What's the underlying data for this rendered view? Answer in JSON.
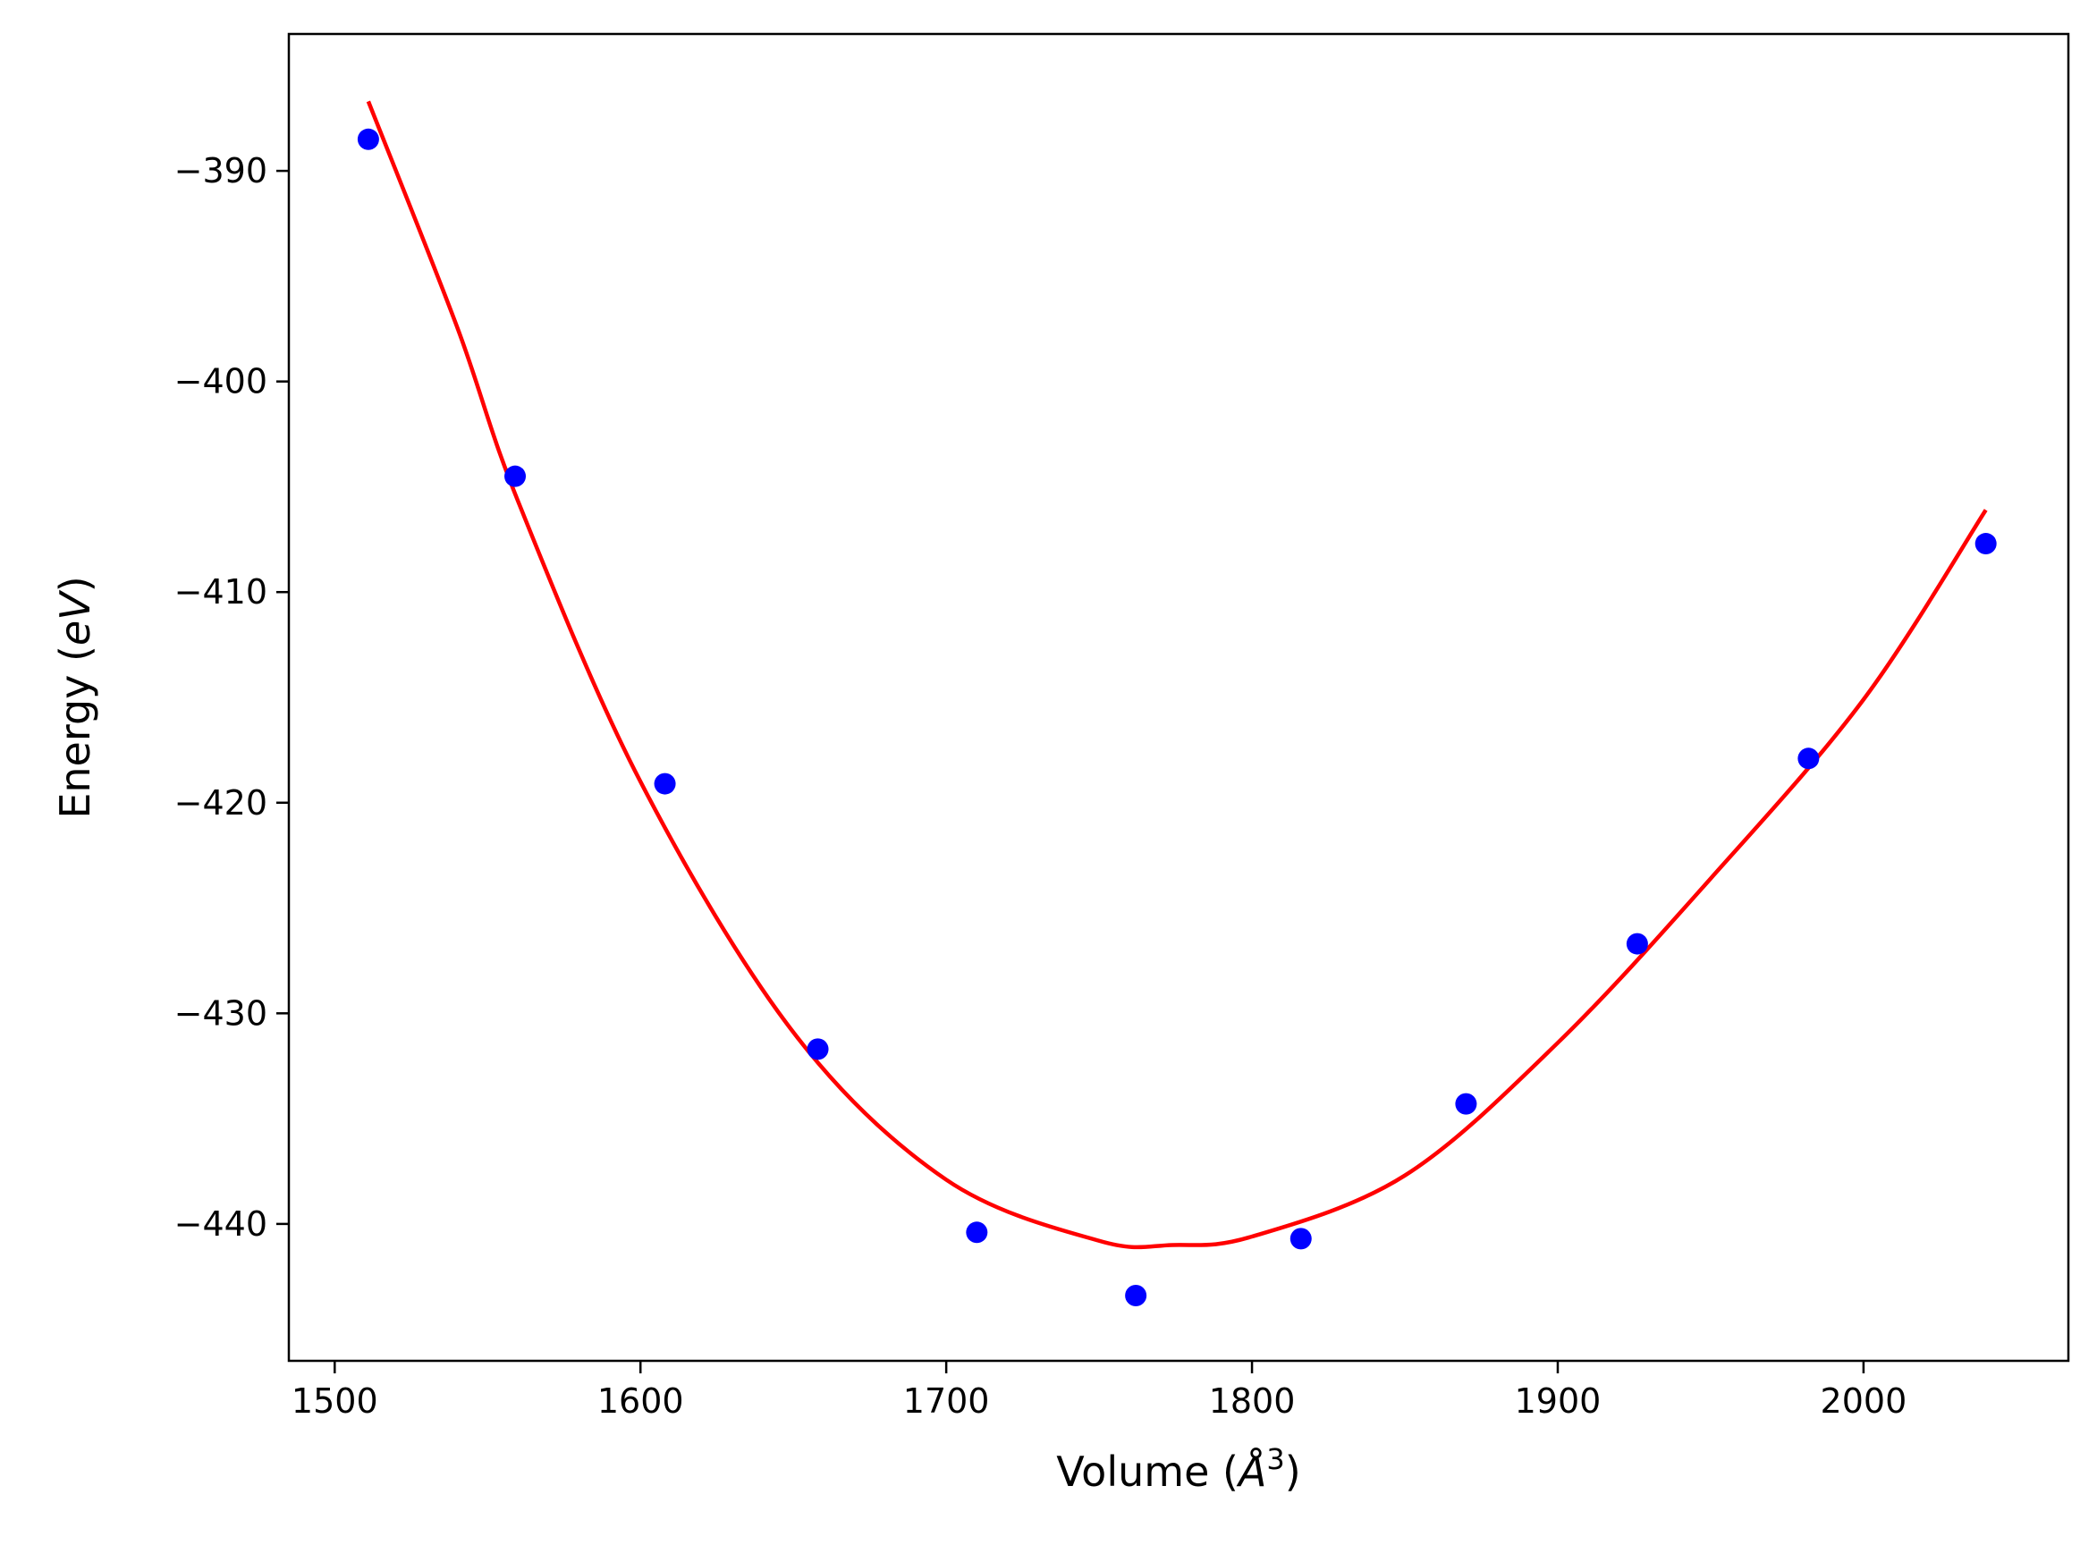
{
  "chart_data": {
    "type": "scatter",
    "xlabel": {
      "prefix": "Volume (",
      "symbol": "Å",
      "sup": "3",
      "suffix": ")"
    },
    "ylabel": {
      "prefix": "Energy (",
      "symbol": "eV",
      "suffix": ")"
    },
    "xlim": [
      1485,
      2067
    ],
    "ylim": [
      -446.5,
      -383.5
    ],
    "xticks": [
      1500,
      1600,
      1700,
      1800,
      1900,
      2000
    ],
    "yticks": [
      -390,
      -400,
      -410,
      -420,
      -430,
      -440
    ],
    "ytick_labels": [
      "−390",
      "−400",
      "−410",
      "−420",
      "−430",
      "−440"
    ],
    "grid": false,
    "legend": "none",
    "series": [
      {
        "kind": "scatter",
        "color": "#0000ff",
        "points": [
          {
            "x": 1511,
            "y": -388.5
          },
          {
            "x": 1559,
            "y": -404.5
          },
          {
            "x": 1608,
            "y": -419.1
          },
          {
            "x": 1658,
            "y": -431.7
          },
          {
            "x": 1710,
            "y": -440.4
          },
          {
            "x": 1762,
            "y": -443.4
          },
          {
            "x": 1816,
            "y": -440.7
          },
          {
            "x": 1870,
            "y": -434.3
          },
          {
            "x": 1926,
            "y": -426.7
          },
          {
            "x": 1982,
            "y": -417.9
          },
          {
            "x": 2040,
            "y": -407.7
          }
        ]
      },
      {
        "kind": "fit-curve",
        "color": "#ff0000",
        "points": [
          {
            "x": 1511,
            "y": -386.7
          },
          {
            "x": 1540,
            "y": -397.4
          },
          {
            "x": 1560,
            "y": -405.7
          },
          {
            "x": 1600,
            "y": -419.0
          },
          {
            "x": 1650,
            "y": -430.9
          },
          {
            "x": 1700,
            "y": -437.9
          },
          {
            "x": 1750,
            "y": -440.8
          },
          {
            "x": 1774,
            "y": -441.0
          },
          {
            "x": 1800,
            "y": -440.6
          },
          {
            "x": 1850,
            "y": -437.7
          },
          {
            "x": 1900,
            "y": -431.4
          },
          {
            "x": 1950,
            "y": -423.6
          },
          {
            "x": 2000,
            "y": -415.1
          },
          {
            "x": 2040,
            "y": -406.1
          }
        ]
      }
    ]
  }
}
